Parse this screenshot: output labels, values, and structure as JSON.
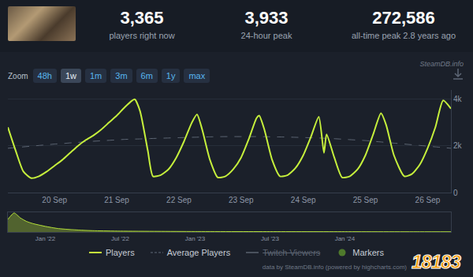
{
  "header": {
    "stats": [
      {
        "value": "3,365",
        "label": "players right now"
      },
      {
        "value": "3,933",
        "label": "24-hour peak"
      },
      {
        "value": "272,586",
        "label": "all-time peak 2.8 years ago"
      }
    ]
  },
  "source_label": "SteamDB.info",
  "zoom": {
    "label": "Zoom",
    "buttons": [
      "48h",
      "1w",
      "1m",
      "3m",
      "6m",
      "1y",
      "max"
    ],
    "selected": "1w"
  },
  "chart_data": [
    {
      "type": "line",
      "x": [
        -18,
        -15,
        -12,
        -9,
        -6,
        -3,
        0,
        3,
        6,
        9,
        12,
        15,
        18,
        21,
        24,
        27,
        30,
        31,
        33,
        36,
        38,
        41,
        44,
        47,
        50,
        53,
        55,
        57,
        60,
        63,
        66,
        69,
        72,
        75,
        78,
        79,
        81,
        84,
        87,
        90,
        93,
        96,
        99,
        102,
        104,
        105,
        108,
        111,
        114,
        117,
        120,
        123,
        126,
        128,
        131,
        135,
        138,
        141,
        144,
        147,
        150,
        153
      ],
      "xlim": [
        -18,
        153
      ],
      "xticks": [
        {
          "value": 0,
          "label": "20 Sep"
        },
        {
          "value": 24,
          "label": "21 Sep"
        },
        {
          "value": 48,
          "label": "22 Sep"
        },
        {
          "value": 72,
          "label": "23 Sep"
        },
        {
          "value": 96,
          "label": "24 Sep"
        },
        {
          "value": 120,
          "label": "25 Sep"
        },
        {
          "value": 144,
          "label": "26 Sep"
        }
      ],
      "ylim": [
        0,
        4400
      ],
      "yticks": [
        0,
        {
          "value": 2000,
          "label": "2k"
        },
        {
          "value": 4000,
          "label": "4k"
        }
      ],
      "grid": true,
      "legend": "bottom",
      "series": [
        {
          "name": "Players",
          "color": "#c6f03c",
          "line_style": "solid",
          "values": [
            2800,
            1800,
            900,
            620,
            700,
            900,
            1150,
            1400,
            1700,
            2000,
            2250,
            2450,
            2700,
            3000,
            3300,
            3650,
            3950,
            4000,
            3500,
            1800,
            700,
            750,
            1000,
            1500,
            2200,
            3000,
            3350,
            2700,
            1400,
            650,
            700,
            1000,
            1500,
            2300,
            3200,
            3300,
            2700,
            1400,
            700,
            750,
            1050,
            1600,
            2400,
            3250,
            1700,
            2500,
            1500,
            650,
            700,
            1000,
            1600,
            2500,
            3400,
            2900,
            1600,
            700,
            800,
            1200,
            1900,
            2800,
            3950,
            3600
          ]
        },
        {
          "name": "Average Players",
          "color": "#5f6876",
          "line_style": "dash",
          "values": [
            1900,
            1930,
            1960,
            1990,
            2020,
            2050,
            2080,
            2100,
            2130,
            2150,
            2180,
            2200,
            2220,
            2240,
            2260,
            2280,
            2290,
            2295,
            2300,
            2310,
            2320,
            2330,
            2340,
            2350,
            2360,
            2370,
            2375,
            2380,
            2390,
            2395,
            2400,
            2400,
            2400,
            2400,
            2400,
            2400,
            2395,
            2390,
            2385,
            2380,
            2370,
            2360,
            2350,
            2340,
            2330,
            2325,
            2310,
            2290,
            2270,
            2250,
            2230,
            2200,
            2170,
            2150,
            2120,
            2080,
            2050,
            2020,
            1990,
            1960,
            1930,
            1900
          ]
        }
      ]
    },
    {
      "type": "area",
      "x": [
        -3,
        -2.5,
        -2,
        -1.5,
        -1,
        0,
        1,
        2,
        3,
        4,
        6,
        9,
        12,
        18,
        24,
        30,
        32.5
      ],
      "xlim": [
        -3,
        32.5
      ],
      "xticks": [
        {
          "value": 0,
          "label": "Jan '22"
        },
        {
          "value": 6,
          "label": "Jul '22"
        },
        {
          "value": 12,
          "label": "Jan '23"
        },
        {
          "value": 18,
          "label": "Jul '23"
        },
        {
          "value": 24,
          "label": "Jan '24"
        }
      ],
      "ylim": [
        0,
        280000
      ],
      "yticks": [],
      "tick_labels": "x",
      "series": [
        {
          "color": "#b7e33a",
          "values": [
            180000,
            270000,
            200000,
            150000,
            120000,
            80000,
            50000,
            35000,
            25000,
            18000,
            12000,
            9000,
            7000,
            5000,
            4000,
            3000,
            3000
          ]
        }
      ]
    }
  ],
  "legend_extra": [
    {
      "name": "Twitch Viewers",
      "hidden": true
    },
    {
      "name": "Markers",
      "color": "#4f7a2c"
    }
  ],
  "credits": "data by SteamDB.info (powered by highcharts.com)",
  "watermark": "18183"
}
